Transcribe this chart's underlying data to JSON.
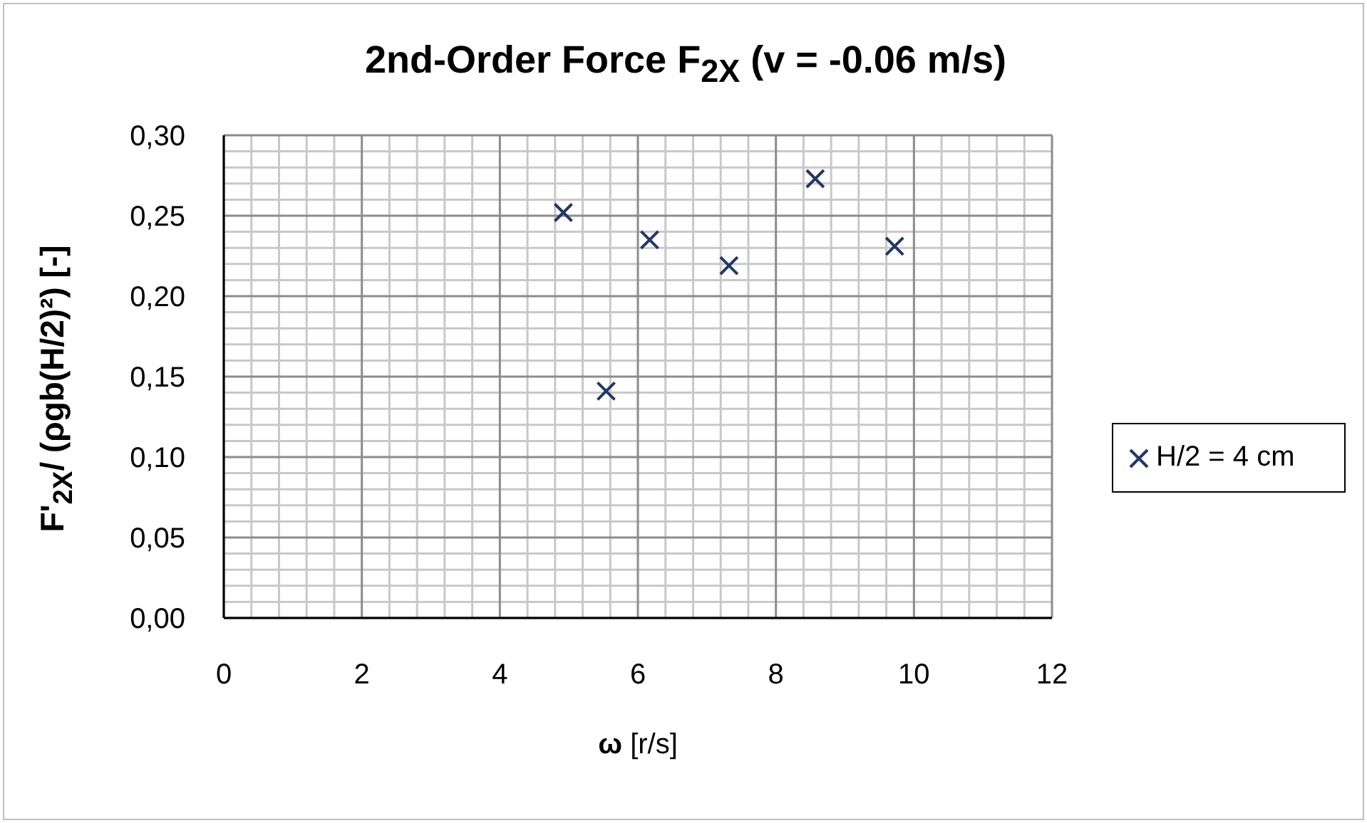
{
  "chart_data": {
    "type": "scatter",
    "title": "2nd-Order Force F$_{2X}$ (v = -0.06 m/s)",
    "xlabel": "ω [r/s]",
    "ylabel": "F'$_{2X}$/ (ρgb(H/2)²) [-]",
    "x": [
      4.92,
      5.54,
      6.17,
      7.32,
      8.57,
      9.72
    ],
    "series": [
      {
        "name": "H/2 = 4 cm",
        "color": "#203864",
        "values": [
          0.252,
          0.141,
          0.235,
          0.219,
          0.273,
          0.231
        ]
      }
    ],
    "xlim": [
      0,
      12
    ],
    "xticks": [
      0,
      {
        "value": 0.4,
        "label": null
      },
      {
        "value": 0.8,
        "label": null
      },
      {
        "value": 1.2,
        "label": null
      },
      {
        "value": 1.6,
        "label": null
      },
      2,
      {
        "value": 2.4,
        "label": null
      },
      {
        "value": 2.8,
        "label": null
      },
      {
        "value": 3.2,
        "label": null
      },
      {
        "value": 3.6,
        "label": null
      },
      4,
      {
        "value": 4.4,
        "label": null
      },
      {
        "value": 4.8,
        "label": null
      },
      {
        "value": 5.2,
        "label": null
      },
      {
        "value": 5.6,
        "label": null
      },
      6,
      {
        "value": 6.4,
        "label": null
      },
      {
        "value": 6.8,
        "label": null
      },
      {
        "value": 7.2,
        "label": null
      },
      {
        "value": 7.6,
        "label": null
      },
      8,
      {
        "value": 8.4,
        "label": null
      },
      {
        "value": 8.8,
        "label": null
      },
      {
        "value": 9.2,
        "label": null
      },
      {
        "value": 9.6,
        "label": null
      },
      10,
      {
        "value": 10.4,
        "label": null
      },
      {
        "value": 10.8,
        "label": null
      },
      {
        "value": 11.2,
        "label": null
      },
      {
        "value": 11.6,
        "label": null
      },
      12
    ],
    "ylim": [
      0,
      0.3
    ],
    "yticks": [
      {
        "value": 0,
        "label": "0,00"
      },
      {
        "value": 0.01,
        "label": null
      },
      {
        "value": 0.02,
        "label": null
      },
      {
        "value": 0.03,
        "label": null
      },
      {
        "value": 0.04,
        "label": null
      },
      {
        "value": 0.05,
        "label": "0,05"
      },
      {
        "value": 0.06,
        "label": null
      },
      {
        "value": 0.07,
        "label": null
      },
      {
        "value": 0.08,
        "label": null
      },
      {
        "value": 0.09,
        "label": null
      },
      {
        "value": 0.1,
        "label": "0,10"
      },
      {
        "value": 0.11,
        "label": null
      },
      {
        "value": 0.12,
        "label": null
      },
      {
        "value": 0.13,
        "label": null
      },
      {
        "value": 0.14,
        "label": null
      },
      {
        "value": 0.15,
        "label": "0,15"
      },
      {
        "value": 0.16,
        "label": null
      },
      {
        "value": 0.17,
        "label": null
      },
      {
        "value": 0.18,
        "label": null
      },
      {
        "value": 0.19,
        "label": null
      },
      {
        "value": 0.2,
        "label": "0,20"
      },
      {
        "value": 0.21,
        "label": null
      },
      {
        "value": 0.22,
        "label": null
      },
      {
        "value": 0.23,
        "label": null
      },
      {
        "value": 0.24,
        "label": null
      },
      {
        "value": 0.25,
        "label": "0,25"
      },
      {
        "value": 0.26,
        "label": null
      },
      {
        "value": 0.27,
        "label": null
      },
      {
        "value": 0.28,
        "label": null
      },
      {
        "value": 0.29,
        "label": null
      },
      {
        "value": 0.3,
        "label": "0,30"
      }
    ],
    "grid": true,
    "legend": "right",
    "marker": "cross"
  }
}
